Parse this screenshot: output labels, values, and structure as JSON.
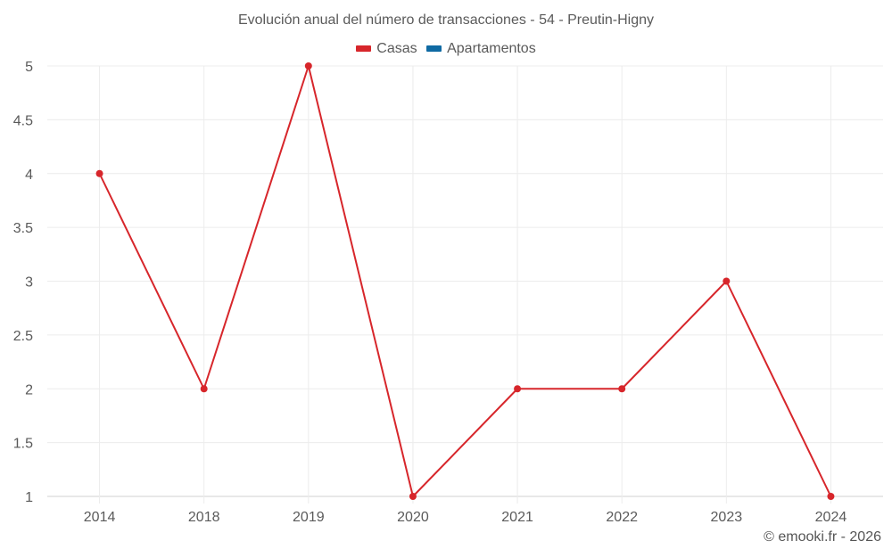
{
  "title": "Evolución anual del número de transacciones - 54 - Preutin-Higny",
  "legend": [
    {
      "label": "Casas",
      "color": "#d7262b"
    },
    {
      "label": "Apartamentos",
      "color": "#0f6aa3"
    }
  ],
  "credit": "© emooki.fr - 2026",
  "chart_data": {
    "type": "line",
    "title": "Evolución anual del número de transacciones - 54 - Preutin-Higny",
    "xlabel": "",
    "ylabel": "",
    "categories": [
      "2014",
      "2018",
      "2019",
      "2020",
      "2021",
      "2022",
      "2023",
      "2024"
    ],
    "series": [
      {
        "name": "Casas",
        "color": "#d7262b",
        "values": [
          4,
          2,
          5,
          1,
          2,
          2,
          3,
          1
        ]
      },
      {
        "name": "Apartamentos",
        "color": "#0f6aa3",
        "values": []
      }
    ],
    "ylim": [
      1,
      5
    ],
    "yticks": [
      "1",
      "1.5",
      "2",
      "2.5",
      "3",
      "3.5",
      "4",
      "4.5",
      "5"
    ],
    "grid": true,
    "legend_position": "top"
  }
}
